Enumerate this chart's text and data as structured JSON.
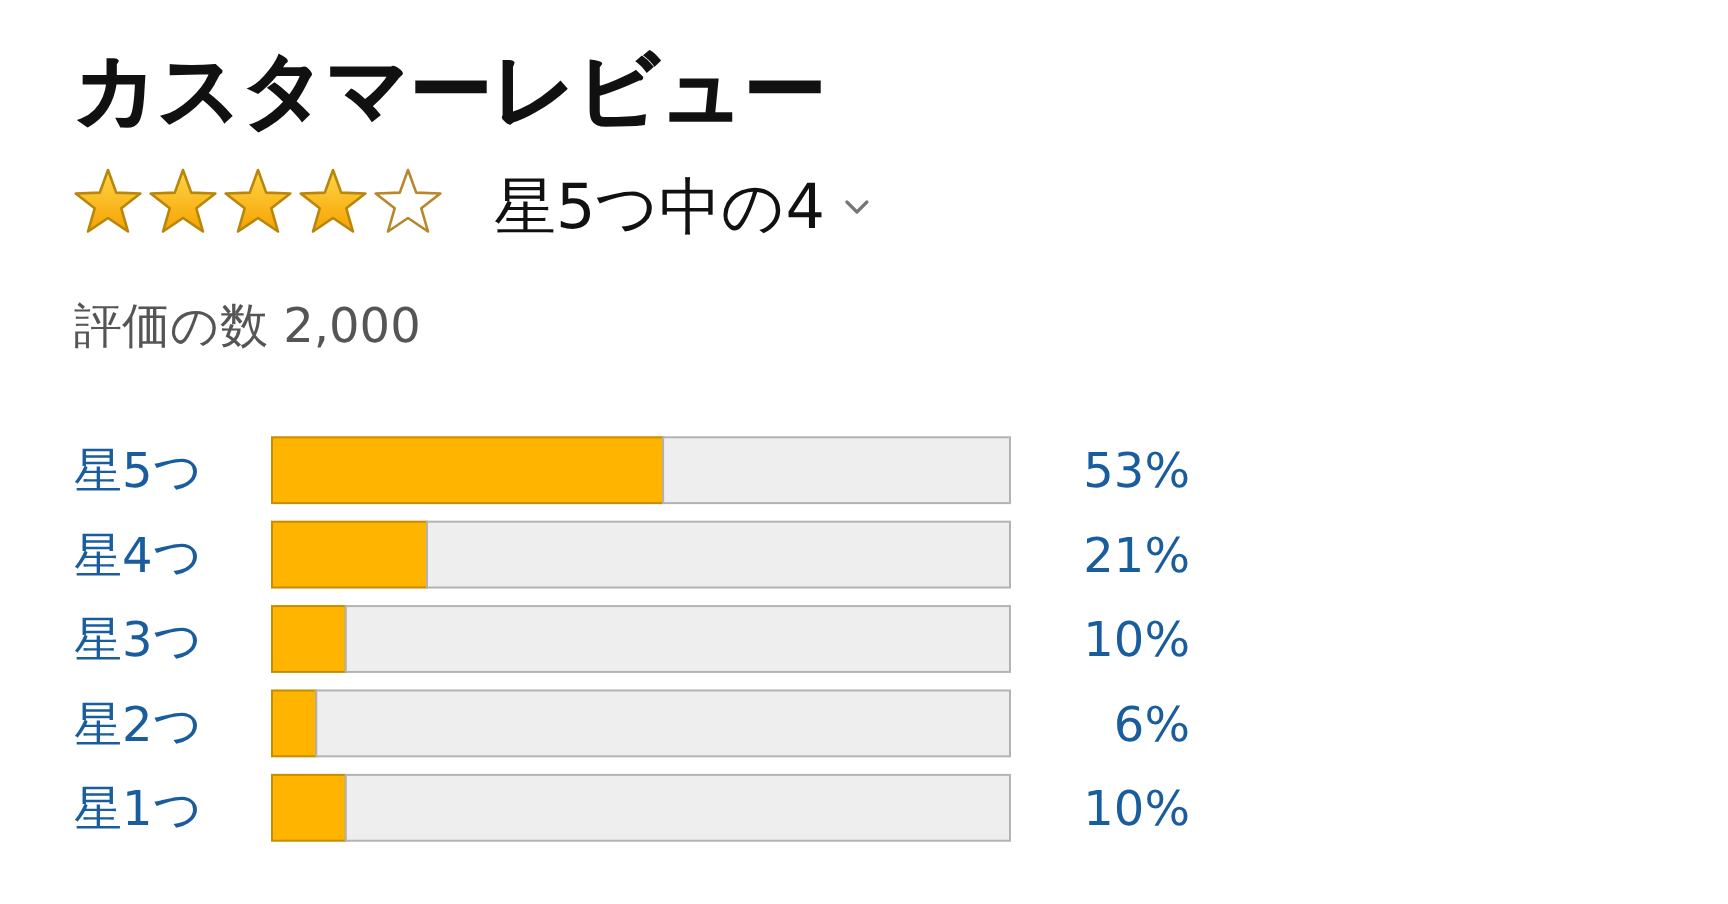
{
  "chart_data": {
    "type": "bar",
    "orientation": "horizontal",
    "stacked": true,
    "title": "カスタマーレビュー",
    "subtitle": "星5つ中の4",
    "annotations": [
      "評価の数 2,000"
    ],
    "categories": [
      "星5つ",
      "星4つ",
      "星3つ",
      "星2つ",
      "星1つ"
    ],
    "series": [
      {
        "color": "#ffb400",
        "values": [
          53,
          21,
          10,
          6,
          10
        ],
        "value_labels": [
          "53%",
          "21%",
          "10%",
          "6%",
          "10%"
        ]
      },
      {
        "color": "#eeeeee",
        "values": [
          47,
          79,
          90,
          94,
          90
        ]
      }
    ],
    "xlim": [
      0,
      100
    ],
    "tick_labels": "y"
  }
}
